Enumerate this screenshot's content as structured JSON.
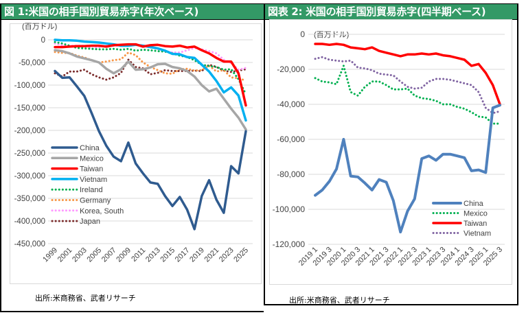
{
  "panels": [
    {
      "title": "図 1:米国の相手国別貿易赤字(年次ベース)",
      "unit_label": "(百万ドル)",
      "source": "出所:米商務省、武者リサーチ"
    },
    {
      "title": "図表 2: 米国の相手国別貿易赤字(四半期ベース)",
      "unit_label": "(百万ドル)",
      "source": "出所:米商務省、武者リサーチ"
    }
  ],
  "chart_data": [
    {
      "type": "line",
      "title": "図 1:米国の相手国別貿易赤字(年次ベース)",
      "ylabel": "(百万ドル)",
      "xlabel": "",
      "ylim": [
        -450000,
        0
      ],
      "yticks": [
        0,
        -50000,
        -100000,
        -150000,
        -200000,
        -250000,
        -300000,
        -350000,
        -400000,
        -450000
      ],
      "ytick_labels": [
        "0",
        "-50,000",
        "-100,000",
        "-150,000",
        "-200,000",
        "-250,000",
        "-300,000",
        "-350,000",
        "-400,000",
        "-450,000"
      ],
      "x": [
        1999,
        2000,
        2001,
        2002,
        2003,
        2004,
        2005,
        2006,
        2007,
        2008,
        2009,
        2010,
        2011,
        2012,
        2013,
        2014,
        2015,
        2016,
        2017,
        2018,
        2019,
        2020,
        2021,
        2022,
        2023,
        2024,
        2025
      ],
      "xtick_labels": [
        "1999",
        "2001",
        "2003",
        "2005",
        "2007",
        "2009",
        "2011",
        "2013",
        "2015",
        "2017",
        "2019",
        "2021",
        "2023",
        "2025"
      ],
      "grid": true,
      "legend_position": "bottom-left",
      "series": [
        {
          "name": "China",
          "color": "#2f5b8f",
          "style": "solid",
          "width": 3.5,
          "values": [
            -69000,
            -84000,
            -83000,
            -103000,
            -124000,
            -162000,
            -202000,
            -234000,
            -258000,
            -268000,
            -227000,
            -273000,
            -295000,
            -315000,
            -318000,
            -345000,
            -367000,
            -347000,
            -375000,
            -418000,
            -345000,
            -310000,
            -353000,
            -382000,
            -279000,
            -295000,
            -202000
          ]
        },
        {
          "name": "Mexico",
          "color": "#a6a6a6",
          "style": "solid",
          "width": 3.5,
          "values": [
            -23000,
            -25000,
            -30000,
            -37000,
            -41000,
            -45000,
            -50000,
            -64000,
            -74000,
            -65000,
            -48000,
            -66000,
            -65000,
            -61000,
            -54000,
            -53000,
            -60000,
            -63000,
            -69000,
            -81000,
            -100000,
            -114000,
            -108000,
            -130000,
            -152000,
            -172000,
            -198000
          ]
        },
        {
          "name": "Taiwan",
          "color": "#ff0000",
          "style": "solid",
          "width": 3.5,
          "values": [
            -16000,
            -16000,
            -15000,
            -14000,
            -14000,
            -13000,
            -13000,
            -15000,
            -12000,
            -11000,
            -10000,
            -10000,
            -15000,
            -12000,
            -11000,
            -14000,
            -15000,
            -13000,
            -17000,
            -15000,
            -23000,
            -30000,
            -40000,
            -48000,
            -48000,
            -74000,
            -145000
          ]
        },
        {
          "name": "Vietnam",
          "color": "#00b0f0",
          "style": "solid",
          "width": 3.5,
          "values": [
            0,
            -1000,
            -1000,
            -2000,
            -4000,
            -5000,
            -6000,
            -8000,
            -10000,
            -13000,
            -13000,
            -11000,
            -13000,
            -16000,
            -19000,
            -24000,
            -31000,
            -32000,
            -38000,
            -40000,
            -55000,
            -70000,
            -91000,
            -116000,
            -105000,
            -123000,
            -178000
          ]
        },
        {
          "name": "Ireland",
          "color": "#00b050",
          "style": "dotted",
          "width": 2.5,
          "values": [
            -5000,
            -8000,
            -13000,
            -18000,
            -19000,
            -20000,
            -21000,
            -21000,
            -20000,
            -22000,
            -20000,
            -24000,
            -22000,
            -23000,
            -25000,
            -26000,
            -30000,
            -35000,
            -38000,
            -45000,
            -55000,
            -58000,
            -60000,
            -66000,
            -65000,
            -87000,
            -120000
          ]
        },
        {
          "name": "Germany",
          "color": "#f79646",
          "style": "dotted",
          "width": 2.5,
          "values": [
            -27000,
            -29000,
            -29000,
            -35000,
            -39000,
            -45000,
            -50000,
            -48000,
            -45000,
            -43000,
            -28000,
            -34000,
            -50000,
            -60000,
            -67000,
            -74000,
            -75000,
            -65000,
            -64000,
            -68000,
            -67000,
            -57000,
            -70000,
            -67000,
            -83000,
            -85000,
            -90000
          ]
        },
        {
          "name": "Korea, South",
          "color": "#ff99ff",
          "style": "dotted",
          "width": 2.5,
          "values": [
            -8000,
            -12000,
            -13000,
            -13000,
            -13000,
            -20000,
            -16000,
            -13000,
            -13000,
            -13000,
            -11000,
            -10000,
            -13000,
            -17000,
            -20000,
            -25000,
            -28000,
            -28000,
            -23000,
            -18000,
            -21000,
            -25000,
            -30000,
            -44000,
            -51000,
            -66000,
            -62000
          ]
        },
        {
          "name": "Japan",
          "color": "#7b2c2c",
          "style": "dotted",
          "width": 2.5,
          "values": [
            -74000,
            -81000,
            -70000,
            -70000,
            -66000,
            -76000,
            -83000,
            -88000,
            -83000,
            -73000,
            -44000,
            -60000,
            -63000,
            -76000,
            -73000,
            -67000,
            -69000,
            -69000,
            -69000,
            -68000,
            -69000,
            -55000,
            -60000,
            -68000,
            -71000,
            -68000,
            -65000
          ]
        }
      ]
    },
    {
      "type": "line",
      "title": "図表 2: 米国の相手国別貿易赤字(四半期ベース)",
      "ylabel": "(百万ドル)",
      "xlabel": "",
      "ylim": [
        -120000,
        0
      ],
      "yticks": [
        0,
        -20000,
        -40000,
        -60000,
        -80000,
        -100000,
        -120000
      ],
      "ytick_labels": [
        "0",
        "-20,000",
        "-40,000",
        "-60,000",
        "-80,000",
        "-100,000",
        "-120,000"
      ],
      "x": [
        "2019 1",
        "2019 2",
        "2019 3",
        "2019 4",
        "2020 1",
        "2020 2",
        "2020 3",
        "2020 4",
        "2021 1",
        "2021 2",
        "2021 3",
        "2021 4",
        "2022 1",
        "2022 2",
        "2022 3",
        "2022 4",
        "2023 1",
        "2023 2",
        "2023 3",
        "2023 4",
        "2024 1",
        "2024 2",
        "2024 3",
        "2024 4",
        "2025 1",
        "2025 2",
        "2025 3"
      ],
      "xtick_labels": [
        "2019 1",
        "2019 3",
        "2020 1",
        "2020 3",
        "2021 1",
        "2021 3",
        "2022 1",
        "2022 3",
        "2023 1",
        "2023 3",
        "2024 1",
        "2024 3",
        "2025 1",
        "2025 3"
      ],
      "grid": true,
      "legend_position": "bottom-right",
      "series": [
        {
          "name": "China",
          "color": "#4f81bd",
          "style": "solid",
          "width": 4,
          "values": [
            -92000,
            -89000,
            -84000,
            -77000,
            -60000,
            -81000,
            -81500,
            -85000,
            -89000,
            -83000,
            -84500,
            -95000,
            -113000,
            -101000,
            -94000,
            -71000,
            -69500,
            -72000,
            -68500,
            -68500,
            -69500,
            -70500,
            -78000,
            -77500,
            -79000,
            -42000,
            -40500
          ]
        },
        {
          "name": "Mexico",
          "color": "#00b050",
          "style": "dotted",
          "width": 2.5,
          "values": [
            -25000,
            -27000,
            -27500,
            -28500,
            -18000,
            -33000,
            -35000,
            -30000,
            -27000,
            -27000,
            -29000,
            -31500,
            -31500,
            -31000,
            -35000,
            -36500,
            -37000,
            -38000,
            -40000,
            -40000,
            -41500,
            -42500,
            -44500,
            -47000,
            -47500,
            -51000,
            -51000
          ]
        },
        {
          "name": "Taiwan",
          "color": "#ff0000",
          "style": "solid",
          "width": 3.5,
          "values": [
            -5500,
            -5500,
            -6000,
            -5500,
            -6000,
            -7500,
            -8000,
            -8500,
            -7500,
            -9500,
            -10500,
            -11500,
            -12500,
            -11500,
            -11500,
            -11000,
            -11500,
            -11000,
            -12000,
            -12500,
            -13500,
            -14500,
            -18000,
            -17000,
            -22000,
            -29000,
            -40000
          ]
        },
        {
          "name": "Vietnam",
          "color": "#8064a2",
          "style": "dotted",
          "width": 2.5,
          "values": [
            -14000,
            -13000,
            -14500,
            -15000,
            -15500,
            -15000,
            -19000,
            -19500,
            -20500,
            -22500,
            -23000,
            -23500,
            -27000,
            -30000,
            -31000,
            -30500,
            -27000,
            -25500,
            -25500,
            -26000,
            -27000,
            -28000,
            -29000,
            -33000,
            -42000,
            -45000,
            -44000
          ]
        }
      ]
    }
  ]
}
